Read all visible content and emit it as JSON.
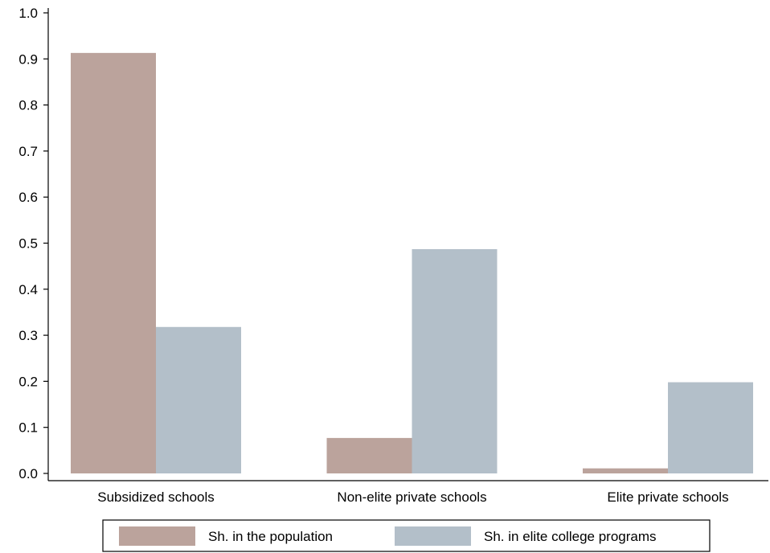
{
  "chart_data": {
    "type": "bar",
    "categories": [
      "Subsidized schools",
      "Non-elite private schools",
      "Elite private schools"
    ],
    "series": [
      {
        "name": "Sh. in the population",
        "values": [
          0.913,
          0.077,
          0.011
        ],
        "color": "#bba39c"
      },
      {
        "name": "Sh. in elite college programs",
        "values": [
          0.318,
          0.487,
          0.198
        ],
        "color": "#b3bfc9"
      }
    ],
    "yticks": [
      "0.0",
      "0.1",
      "0.2",
      "0.3",
      "0.4",
      "0.5",
      "0.6",
      "0.7",
      "0.8",
      "0.9",
      "1.0"
    ],
    "ylim": [
      0,
      1.0
    ],
    "grid": false,
    "legend_position": "bottom"
  }
}
